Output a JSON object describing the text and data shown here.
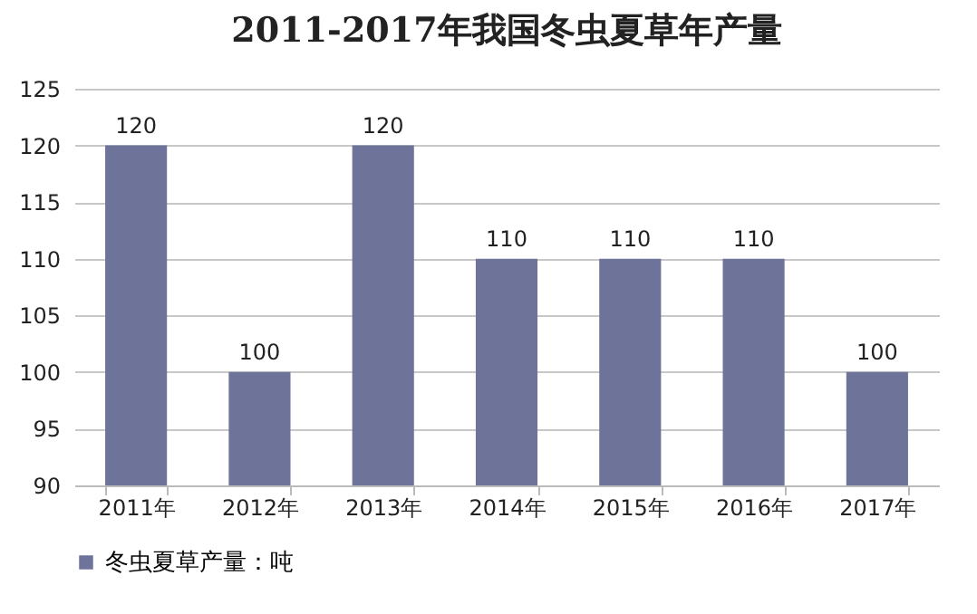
{
  "chart_data": {
    "type": "bar",
    "title": "2011-2017年我国冬虫夏草年产量",
    "categories": [
      "2011年",
      "2012年",
      "2013年",
      "2014年",
      "2015年",
      "2016年",
      "2017年"
    ],
    "series": [
      {
        "name": "冬虫夏草产量：吨",
        "color": "#6e7499",
        "values": [
          120,
          100,
          120,
          110,
          110,
          110,
          100
        ]
      }
    ],
    "ylim": [
      90,
      125
    ],
    "yticks": [
      90,
      95,
      100,
      105,
      110,
      115,
      120,
      125
    ],
    "grid": "y",
    "legend": "bottom",
    "data_labels": true
  }
}
